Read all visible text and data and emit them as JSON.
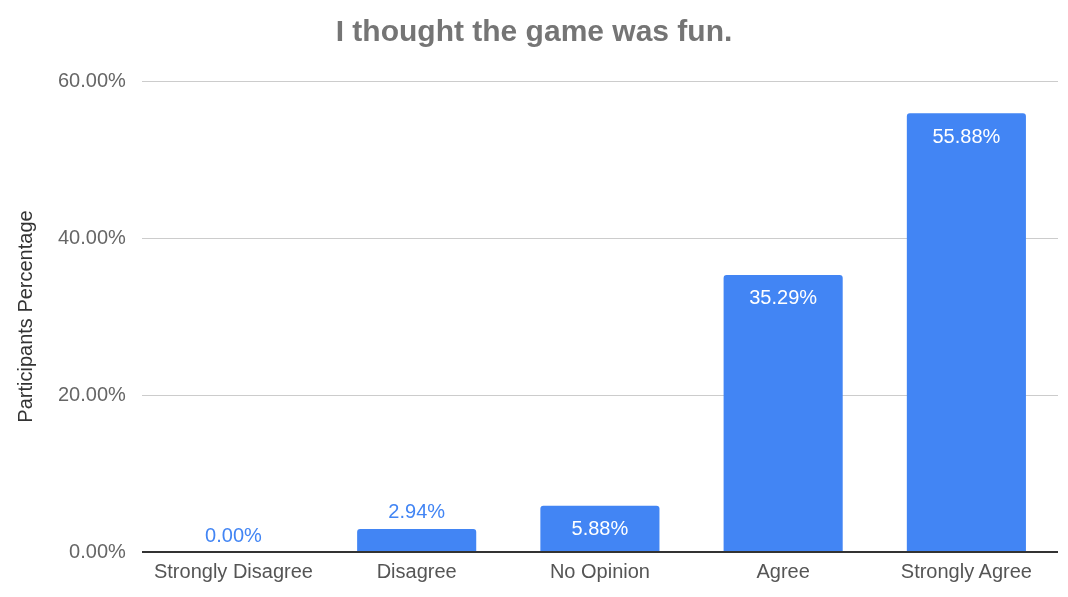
{
  "chart_data": {
    "type": "bar",
    "title": "I thought the game was fun.",
    "ylabel": "Participants Percentage",
    "categories": [
      "Strongly Disagree",
      "Disagree",
      "No Opinion",
      "Agree",
      "Strongly Agree"
    ],
    "values": [
      0,
      2.94,
      5.88,
      35.29,
      55.88
    ],
    "value_labels": [
      "0.00%",
      "2.94%",
      "5.88%",
      "35.29%",
      "55.88%"
    ],
    "color": "#4285f4",
    "ylim": [
      0,
      60
    ],
    "yticks": [
      {
        "value": 0,
        "label": "0.00%"
      },
      {
        "value": 20,
        "label": "20.00%"
      },
      {
        "value": 40,
        "label": "40.00%"
      },
      {
        "value": 60,
        "label": "60.00%"
      }
    ],
    "grid": "y",
    "legend": false
  }
}
